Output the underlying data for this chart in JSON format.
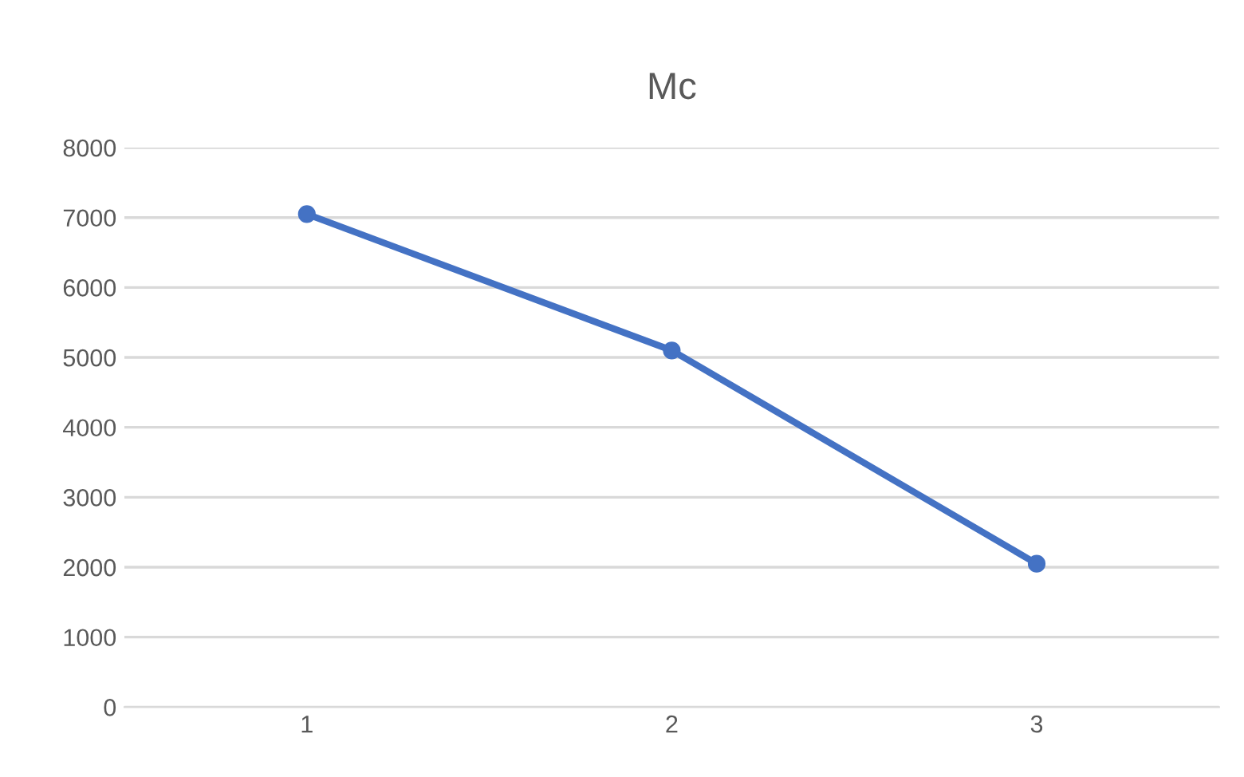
{
  "chart_data": {
    "type": "line",
    "title": "Mc",
    "categories": [
      "1",
      "2",
      "3"
    ],
    "series": [
      {
        "color": "#4472c4",
        "values": [
          7050,
          5100,
          2050
        ]
      }
    ],
    "ylim": [
      0,
      8000
    ],
    "yticks": [
      0,
      1000,
      2000,
      3000,
      4000,
      5000,
      6000,
      7000,
      8000
    ],
    "grid": "y",
    "marker": "circle",
    "line_style": "solid"
  }
}
